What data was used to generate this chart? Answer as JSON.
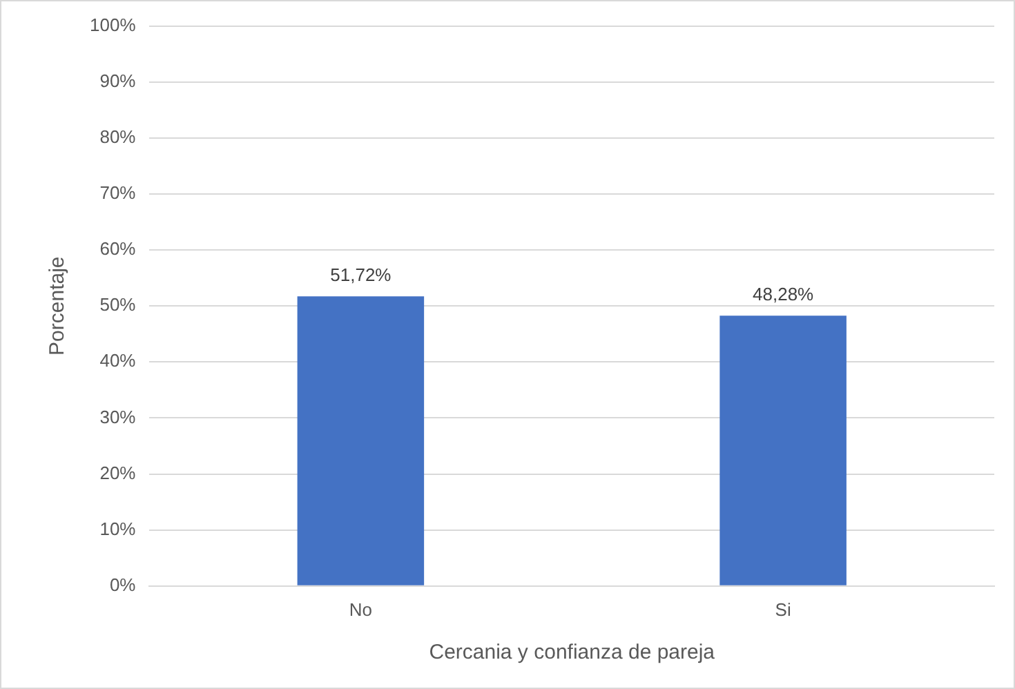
{
  "chart_data": {
    "type": "bar",
    "xlabel": "Cercania y confianza de pareja",
    "ylabel": "Porcentaje",
    "categories": [
      "No",
      "Si"
    ],
    "values": [
      51.72,
      48.28
    ],
    "value_labels": [
      "51,72%",
      "48,28%"
    ],
    "color": "#4472c4",
    "ylim": [
      0,
      100
    ],
    "yticks": [
      {
        "value": 0,
        "label": "0%"
      },
      {
        "value": 10,
        "label": "10%"
      },
      {
        "value": 20,
        "label": "20%"
      },
      {
        "value": 30,
        "label": "30%"
      },
      {
        "value": 40,
        "label": "40%"
      },
      {
        "value": 50,
        "label": "50%"
      },
      {
        "value": 60,
        "label": "60%"
      },
      {
        "value": 70,
        "label": "70%"
      },
      {
        "value": 80,
        "label": "80%"
      },
      {
        "value": 90,
        "label": "90%"
      },
      {
        "value": 100,
        "label": "100%"
      }
    ],
    "grid": "y",
    "legend": false
  }
}
